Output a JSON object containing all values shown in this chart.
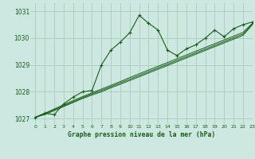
{
  "background_color": "#cce8e0",
  "grid_color": "#aaccbb",
  "line_color": "#1a5c1a",
  "title": "Graphe pression niveau de la mer (hPa)",
  "xlim": [
    -0.5,
    23
  ],
  "ylim": [
    1026.8,
    1031.3
  ],
  "yticks": [
    1027,
    1028,
    1029,
    1030,
    1031
  ],
  "xticks": [
    0,
    1,
    2,
    3,
    4,
    5,
    6,
    7,
    8,
    9,
    10,
    11,
    12,
    13,
    14,
    15,
    16,
    17,
    18,
    19,
    20,
    21,
    22,
    23
  ],
  "series_main": [
    1027.05,
    1027.2,
    1027.15,
    1027.55,
    1027.8,
    1028.0,
    1028.05,
    1029.0,
    1029.55,
    1029.85,
    1030.2,
    1030.85,
    1030.55,
    1030.3,
    1029.55,
    1029.35,
    1029.6,
    1029.75,
    1030.0,
    1030.3,
    1030.05,
    1030.35,
    1030.5,
    1030.6
  ],
  "series_smooth": [
    [
      1027.05,
      1027.15,
      1027.3,
      1027.45,
      1027.6,
      1027.75,
      1027.88,
      1028.0,
      1028.15,
      1028.28,
      1028.42,
      1028.56,
      1028.7,
      1028.84,
      1028.98,
      1029.12,
      1029.26,
      1029.4,
      1029.54,
      1029.68,
      1029.82,
      1029.96,
      1030.1,
      1030.5
    ],
    [
      1027.05,
      1027.18,
      1027.33,
      1027.48,
      1027.63,
      1027.78,
      1027.92,
      1028.05,
      1028.19,
      1028.33,
      1028.47,
      1028.61,
      1028.75,
      1028.89,
      1029.03,
      1029.17,
      1029.31,
      1029.45,
      1029.59,
      1029.73,
      1029.87,
      1030.01,
      1030.15,
      1030.52
    ],
    [
      1027.05,
      1027.2,
      1027.36,
      1027.52,
      1027.67,
      1027.82,
      1027.96,
      1028.1,
      1028.24,
      1028.38,
      1028.53,
      1028.67,
      1028.81,
      1028.95,
      1029.09,
      1029.23,
      1029.37,
      1029.51,
      1029.65,
      1029.79,
      1029.93,
      1030.07,
      1030.21,
      1030.55
    ]
  ]
}
